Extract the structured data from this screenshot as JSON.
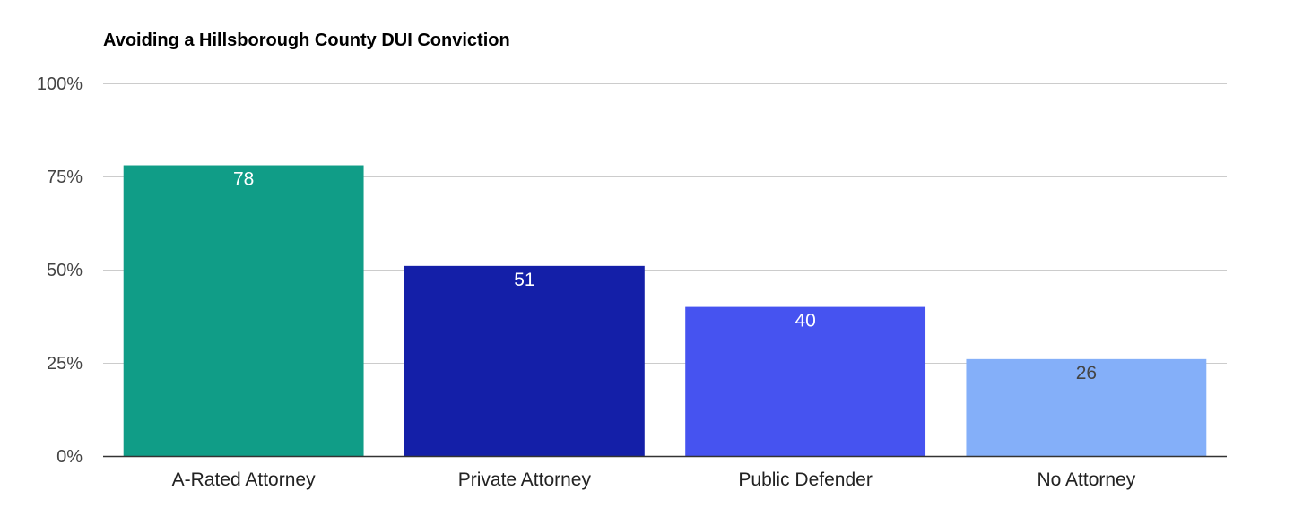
{
  "chart_data": {
    "type": "bar",
    "title": "Avoiding a Hillsborough County DUI Conviction",
    "categories": [
      "A-Rated Attorney",
      "Private Attorney",
      "Public Defender",
      "No Attorney"
    ],
    "values": [
      78,
      51,
      40,
      26
    ],
    "data_labels": [
      "78",
      "51",
      "40",
      "26"
    ],
    "bar_colors": [
      "#109d87",
      "#141fa8",
      "#4653f0",
      "#84aff9"
    ],
    "label_colors": [
      "#ffffff",
      "#ffffff",
      "#ffffff",
      "#444444"
    ],
    "ylim": [
      0,
      100
    ],
    "y_ticks": [
      0,
      25,
      50,
      75,
      100
    ],
    "y_tick_labels": [
      "0%",
      "25%",
      "50%",
      "75%",
      "100%"
    ],
    "xlabel": "",
    "ylabel": "",
    "grid": true,
    "legend": "none"
  }
}
